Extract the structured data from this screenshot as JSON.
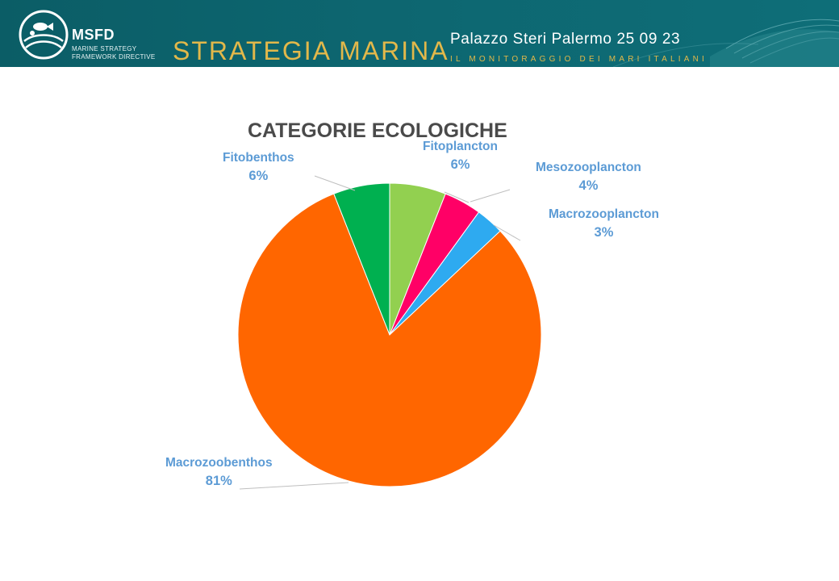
{
  "header": {
    "logo_label": "MSFD",
    "logo_sub_line1": "MARINE STRATEGY",
    "logo_sub_line2": "FRAMEWORK DIRECTIVE",
    "headline": "STRATEGIA MARINA",
    "event": "Palazzo Steri Palermo 25 09 23",
    "tagline": "IL MONITORAGGIO DEI MARI ITALIANI",
    "banner_color": "#0d6670",
    "accent_color": "#e2b84a"
  },
  "chart_data": {
    "type": "pie",
    "title": "CATEGORIE ECOLOGICHE",
    "slices": [
      {
        "label": "Fitoplancton",
        "value": 6,
        "display": "6%",
        "color": "#92d050"
      },
      {
        "label": "Mesozooplancton",
        "value": 4,
        "display": "4%",
        "color": "#ff0066"
      },
      {
        "label": "Macrozooplancton",
        "value": 3,
        "display": "3%",
        "color": "#2eaaf0"
      },
      {
        "label": "Macrozoobenthos",
        "value": 81,
        "display": "81%",
        "color": "#ff6600"
      },
      {
        "label": "Fitobenthos",
        "value": 6,
        "display": "6%",
        "color": "#00b050"
      }
    ],
    "start_angle": "12 o'clock",
    "direction": "clockwise",
    "label_color": "#5c9bd5",
    "legend": "none"
  }
}
